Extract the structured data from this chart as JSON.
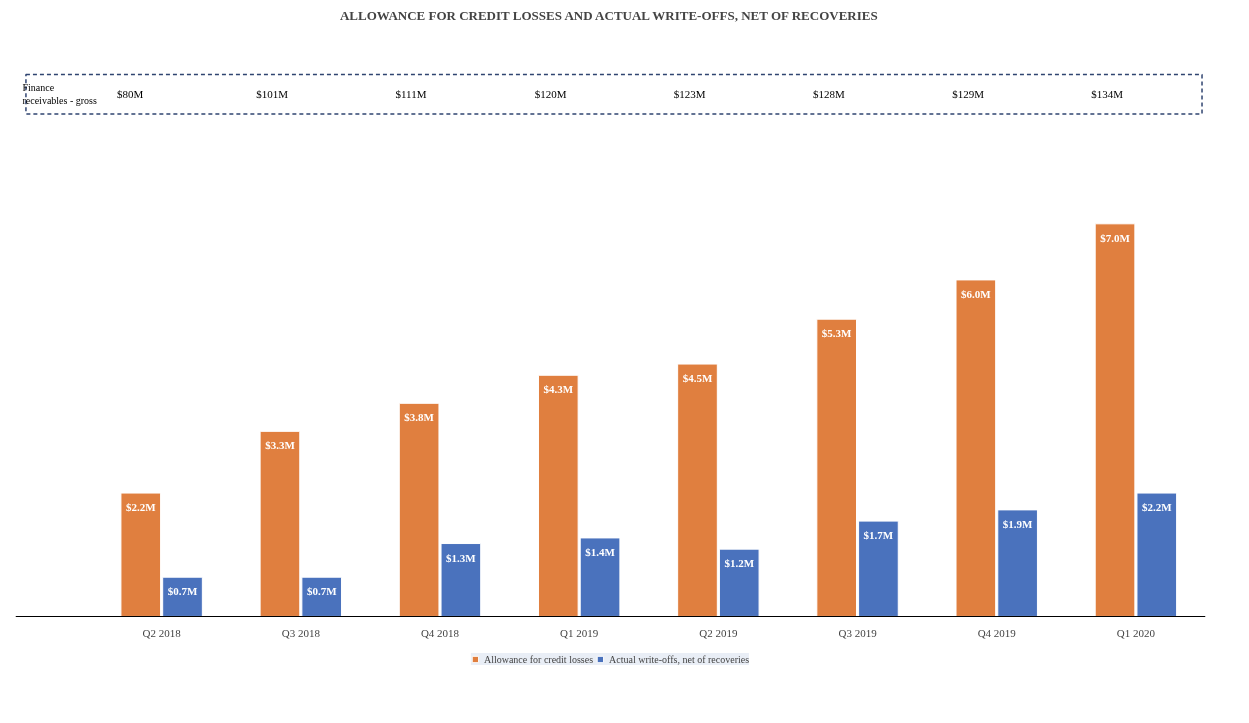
{
  "chart_data": {
    "type": "bar",
    "title": "ALLOWANCE FOR CREDIT LOSSES AND ACTUAL WRITE-OFFS, NET OF RECOVERIES",
    "categories": [
      "Q2 2018",
      "Q3 2018",
      "Q4 2018",
      "Q1 2019",
      "Q2 2019",
      "Q3 2019",
      "Q4 2019",
      "Q1 2020"
    ],
    "series": [
      {
        "name": "Allowance for credit losses",
        "color": "#e07f3f",
        "values": [
          2.2,
          3.3,
          3.8,
          4.3,
          4.5,
          5.3,
          6.0,
          7.0
        ],
        "value_labels": [
          "$2.2M",
          "$3.3M",
          "$3.8M",
          "$4.3M",
          "$4.5M",
          "$5.3M",
          "$6.0M",
          "$7.0M"
        ]
      },
      {
        "name": "Actual write-offs, net of recoveries",
        "color": "#4a72bd",
        "values": [
          0.7,
          0.7,
          1.3,
          1.4,
          1.2,
          1.7,
          1.9,
          2.2
        ],
        "value_labels": [
          "$0.7M",
          "$0.7M",
          "$1.3M",
          "$1.4M",
          "$1.2M",
          "$1.7M",
          "$1.9M",
          "$2.2M"
        ]
      }
    ],
    "annotations": [
      "Finance receivables - gross",
      "$80M",
      "$101M",
      "$111M",
      "$120M",
      "$123M",
      "$128M",
      "$129M",
      "$134M"
    ],
    "legend": "bottom",
    "grid": false
  }
}
